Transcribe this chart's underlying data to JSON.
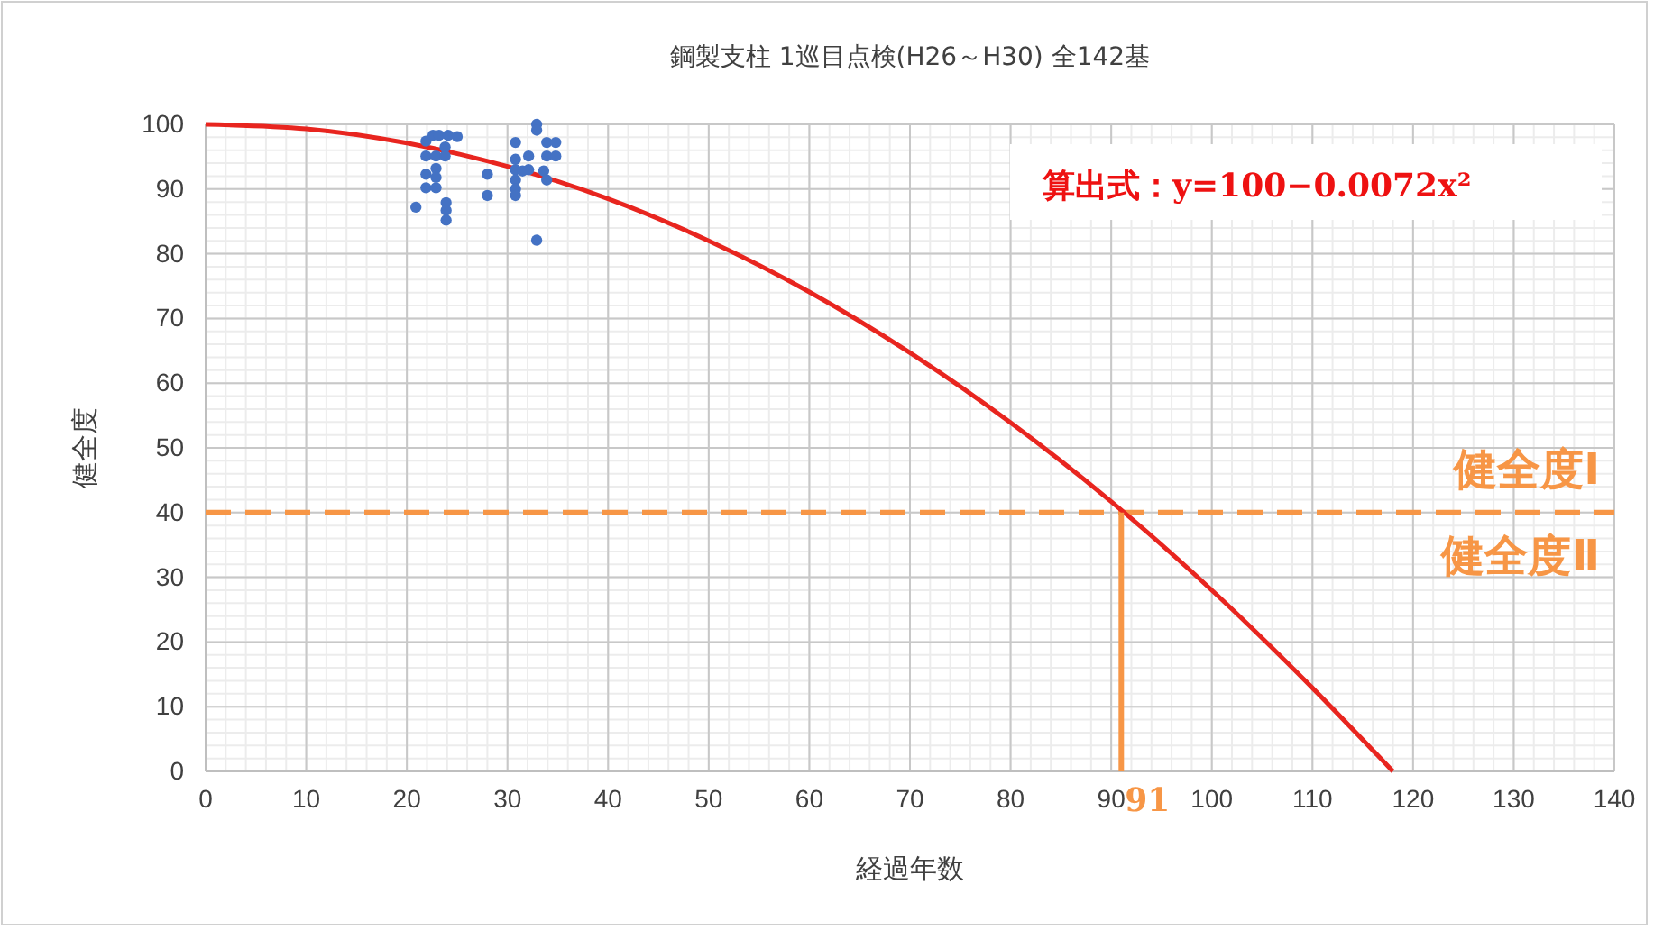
{
  "chart_data": {
    "type": "scatter",
    "title": "鋼製支柱 1巡目点検(H26～H30) 全142基",
    "xlabel": "経過年数",
    "ylabel": "健全度",
    "xlim": [
      0,
      140
    ],
    "xticks": [
      0,
      10,
      20,
      30,
      40,
      50,
      60,
      70,
      80,
      90,
      100,
      110,
      120,
      130,
      140
    ],
    "ylim": [
      0,
      100
    ],
    "yticks": [
      0,
      10,
      20,
      30,
      40,
      50,
      60,
      70,
      80,
      90,
      100
    ],
    "grid": true,
    "series": [
      {
        "color": "#4472c4",
        "marker": "circle",
        "x": [
          20.9,
          21.9,
          22.6,
          23.2,
          24.1,
          25.0,
          21.9,
          22.9,
          23.8,
          23.8,
          21.9,
          22.9,
          21.9,
          22.9,
          22.9,
          23.9,
          23.9,
          23.9,
          28.0,
          28.0,
          30.8,
          30.8,
          30.8,
          30.8,
          30.8,
          30.8,
          32.1,
          32.1,
          31.5,
          32.9,
          32.9,
          32.9,
          33.6,
          33.9,
          34.8,
          33.9,
          34.8,
          33.9
        ],
        "values": [
          87.2,
          97.4,
          98.3,
          98.3,
          98.3,
          98.1,
          95.1,
          95.1,
          96.5,
          95.1,
          92.3,
          93.2,
          90.2,
          91.8,
          90.2,
          87.9,
          86.7,
          85.2,
          92.3,
          89.0,
          97.2,
          94.6,
          93.0,
          91.4,
          90.0,
          89.0,
          95.1,
          93.0,
          92.8,
          100,
          99.1,
          82.1,
          92.8,
          97.2,
          97.2,
          95.1,
          95.1,
          91.4
        ]
      },
      {
        "type": "line",
        "color": "#e8251f",
        "marker": "none",
        "line_style": "solid",
        "x": [
          0,
          10,
          20,
          30,
          40,
          50,
          60,
          70,
          80,
          90,
          100,
          110,
          118
        ],
        "values": [
          100,
          99.3,
          97.1,
          93.5,
          88.5,
          82,
          74.1,
          64.7,
          53.9,
          41.7,
          28,
          12.9,
          0
        ]
      },
      {
        "type": "line",
        "color": "#f79646",
        "marker": "none",
        "line_style": "solid",
        "x": [
          91,
          91
        ],
        "values": [
          0,
          40
        ]
      }
    ],
    "ref_lines": [
      {
        "axis": "y",
        "value": 40,
        "label": null,
        "color": "#f79646",
        "line_style": "dashed"
      }
    ],
    "annotations": [
      "算出式：y=100−0.0072x²",
      "健全度Ⅰ",
      "健全度Ⅱ",
      {
        "text": "91",
        "x": 91,
        "y": 0
      }
    ]
  }
}
